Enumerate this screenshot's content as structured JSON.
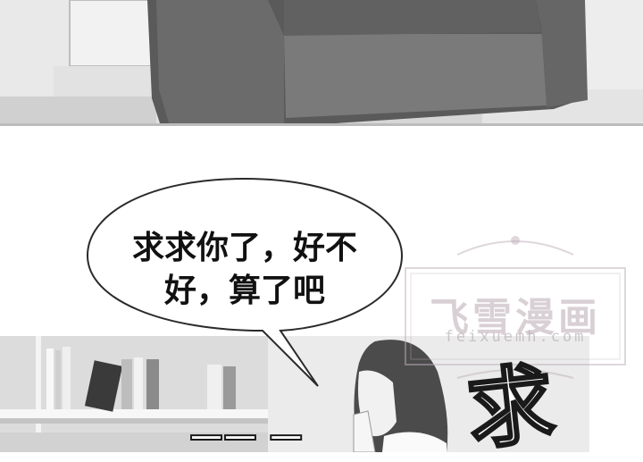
{
  "speech_bubble": {
    "text": "求求你了，好不\n好，算了吧"
  },
  "watermark": {
    "title": "飞雪漫画",
    "url": "feixuemh.com"
  },
  "sound_effects": {
    "qiu": "求",
    "dash": "——  —"
  }
}
